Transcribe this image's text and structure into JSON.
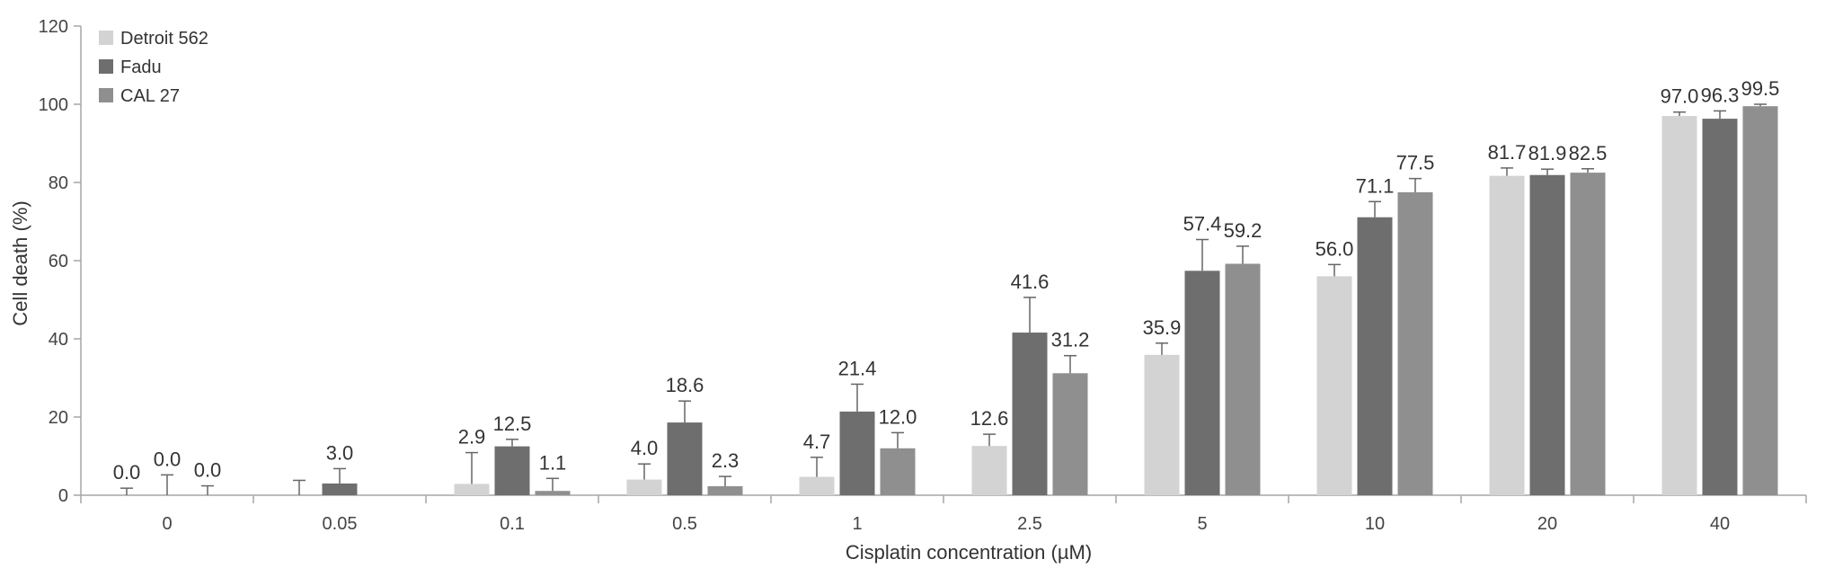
{
  "chart_data": {
    "type": "bar",
    "title": "",
    "xlabel": "Cisplatin concentration (µM)",
    "ylabel": "Cell death (%)",
    "ylim": [
      0,
      120
    ],
    "yticks": [
      0,
      20,
      40,
      60,
      80,
      100,
      120
    ],
    "grid": false,
    "legend_position": "top-left",
    "categories": [
      "0",
      "0.05",
      "0.1",
      "0.5",
      "1",
      "2.5",
      "5",
      "10",
      "20",
      "40"
    ],
    "series": [
      {
        "name": "Detroit 562",
        "color": "#d3d3d3",
        "values": [
          0.0,
          0.0,
          2.9,
          4.0,
          4.7,
          12.6,
          35.9,
          56.0,
          81.7,
          97.0
        ],
        "errors": [
          1.8,
          3.8,
          8.0,
          4.0,
          5.0,
          3.0,
          3.0,
          3.0,
          2.0,
          1.0
        ],
        "labels": [
          "0.0",
          "",
          "2.9",
          "4.0",
          "4.7",
          "12.6",
          "35.9",
          "56.0",
          "81.7",
          "97.0"
        ]
      },
      {
        "name": "Fadu",
        "color": "#6e6e6e",
        "values": [
          0.0,
          3.0,
          12.5,
          18.6,
          21.4,
          41.6,
          57.4,
          71.1,
          81.9,
          96.3
        ],
        "errors": [
          5.2,
          3.8,
          1.8,
          5.5,
          7.0,
          9.0,
          8.0,
          4.0,
          1.5,
          2.0
        ],
        "labels": [
          "0.0",
          "3.0",
          "12.5",
          "18.6",
          "21.4",
          "41.6",
          "57.4",
          "71.1",
          "81.9",
          "96.3"
        ]
      },
      {
        "name": "CAL 27",
        "color": "#8f8f8f",
        "values": [
          0.0,
          0.0,
          1.1,
          2.3,
          12.0,
          31.2,
          59.2,
          77.5,
          82.5,
          99.5
        ],
        "errors": [
          2.4,
          0.0,
          3.2,
          2.5,
          4.0,
          4.5,
          4.5,
          3.5,
          1.0,
          0.5
        ],
        "labels": [
          "0.0",
          "",
          "1.1",
          "2.3",
          "12.0",
          "31.2",
          "59.2",
          "77.5",
          "82.5",
          "99.5"
        ]
      }
    ]
  }
}
